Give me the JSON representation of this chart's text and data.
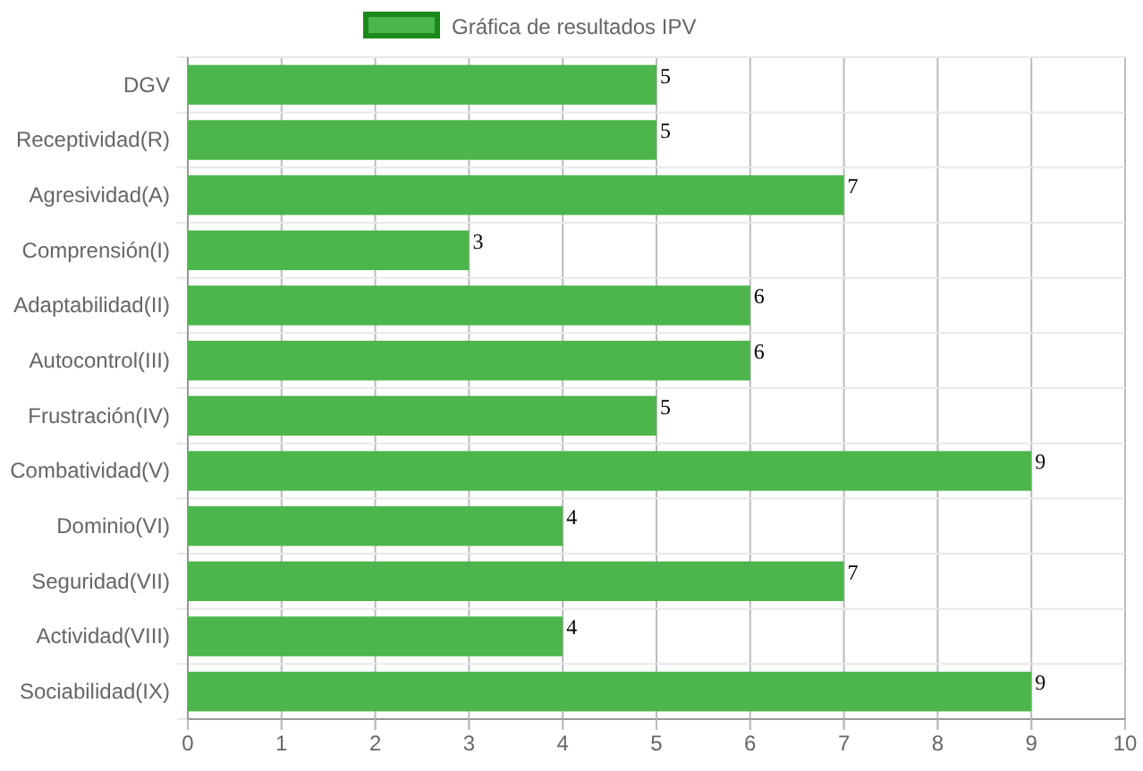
{
  "chart_data": {
    "type": "bar",
    "orientation": "horizontal",
    "categories": [
      "DGV",
      "Receptividad(R)",
      "Agresividad(A)",
      "Comprensión(I)",
      "Adaptabilidad(II)",
      "Autocontrol(III)",
      "Frustración(IV)",
      "Combatividad(V)",
      "Dominio(VI)",
      "Seguridad(VII)",
      "Actividad(VIII)",
      "Sociabilidad(IX)"
    ],
    "series": [
      {
        "name": "Gráfica de resultados IPV",
        "color": "#4cb64c",
        "values": [
          5,
          5,
          7,
          3,
          6,
          6,
          5,
          9,
          4,
          7,
          4,
          9
        ]
      }
    ],
    "xlim": [
      0,
      10
    ],
    "xticks": [
      0,
      1,
      2,
      3,
      4,
      5,
      6,
      7,
      8,
      9,
      10
    ],
    "grid": true,
    "legend": "top",
    "data_labels": true
  }
}
